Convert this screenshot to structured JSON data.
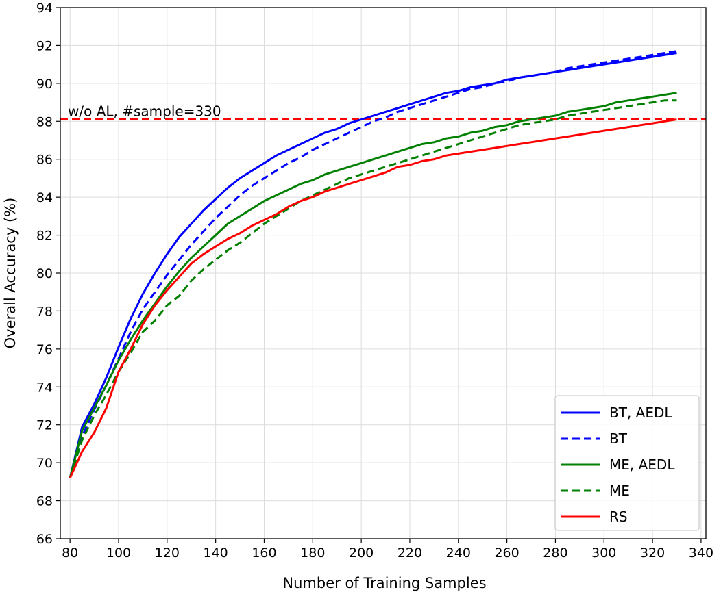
{
  "chart_data": {
    "type": "line",
    "title": "",
    "xlabel": "Number of Training Samples",
    "ylabel": "Overall Accuracy (%)",
    "xlim": [
      76,
      342
    ],
    "ylim": [
      66,
      94
    ],
    "xticks": [
      80,
      100,
      120,
      140,
      160,
      180,
      200,
      220,
      240,
      260,
      280,
      300,
      320,
      340
    ],
    "yticks": [
      66,
      68,
      70,
      72,
      74,
      76,
      78,
      80,
      82,
      84,
      86,
      88,
      90,
      92,
      94
    ],
    "grid": true,
    "legend_position": "lower-right",
    "x": [
      80,
      85,
      90,
      95,
      100,
      105,
      110,
      115,
      120,
      125,
      130,
      135,
      140,
      145,
      150,
      155,
      160,
      165,
      170,
      175,
      180,
      185,
      190,
      195,
      200,
      205,
      210,
      215,
      220,
      225,
      230,
      235,
      240,
      245,
      250,
      255,
      260,
      265,
      270,
      275,
      280,
      285,
      290,
      295,
      300,
      305,
      310,
      315,
      320,
      325,
      330
    ],
    "series": [
      {
        "name": "BT, AEDL",
        "color": "#0000ff",
        "dash": "solid",
        "values": [
          69.2,
          71.9,
          73.1,
          74.5,
          76.1,
          77.6,
          78.9,
          80.0,
          81.0,
          81.9,
          82.6,
          83.3,
          83.9,
          84.5,
          85.0,
          85.4,
          85.8,
          86.2,
          86.5,
          86.8,
          87.1,
          87.4,
          87.6,
          87.9,
          88.1,
          88.3,
          88.5,
          88.7,
          88.9,
          89.1,
          89.3,
          89.5,
          89.6,
          89.8,
          89.9,
          90.0,
          90.2,
          90.3,
          90.4,
          90.5,
          90.6,
          90.7,
          90.8,
          90.9,
          91.0,
          91.1,
          91.2,
          91.3,
          91.4,
          91.5,
          91.6
        ]
      },
      {
        "name": "BT",
        "color": "#0000ff",
        "dash": "dashed",
        "values": [
          69.2,
          71.4,
          72.8,
          74.1,
          75.5,
          76.9,
          78.1,
          79.0,
          79.9,
          80.7,
          81.5,
          82.2,
          82.9,
          83.5,
          84.1,
          84.6,
          85.0,
          85.4,
          85.8,
          86.1,
          86.5,
          86.8,
          87.1,
          87.4,
          87.7,
          88.0,
          88.2,
          88.5,
          88.7,
          88.9,
          89.1,
          89.3,
          89.5,
          89.7,
          89.8,
          90.0,
          90.1,
          90.3,
          90.4,
          90.5,
          90.6,
          90.8,
          90.9,
          91.0,
          91.1,
          91.2,
          91.3,
          91.4,
          91.5,
          91.6,
          91.7
        ]
      },
      {
        "name": "ME, AEDL",
        "color": "#008000",
        "dash": "solid",
        "values": [
          69.2,
          71.7,
          72.9,
          74.1,
          75.4,
          76.5,
          77.5,
          78.4,
          79.3,
          80.1,
          80.8,
          81.4,
          82.0,
          82.6,
          83.0,
          83.4,
          83.8,
          84.1,
          84.4,
          84.7,
          84.9,
          85.2,
          85.4,
          85.6,
          85.8,
          86.0,
          86.2,
          86.4,
          86.6,
          86.8,
          86.9,
          87.1,
          87.2,
          87.4,
          87.5,
          87.7,
          87.8,
          88.0,
          88.1,
          88.2,
          88.3,
          88.5,
          88.6,
          88.7,
          88.8,
          89.0,
          89.1,
          89.2,
          89.3,
          89.4,
          89.5
        ]
      },
      {
        "name": "ME",
        "color": "#008000",
        "dash": "dashed",
        "values": [
          69.2,
          71.2,
          72.5,
          73.6,
          74.8,
          75.8,
          76.9,
          77.5,
          78.3,
          78.8,
          79.6,
          80.2,
          80.7,
          81.2,
          81.6,
          82.1,
          82.6,
          83.0,
          83.4,
          83.8,
          84.1,
          84.4,
          84.7,
          85.0,
          85.2,
          85.4,
          85.6,
          85.8,
          86.0,
          86.2,
          86.4,
          86.6,
          86.8,
          87.0,
          87.2,
          87.4,
          87.6,
          87.8,
          87.9,
          88.0,
          88.1,
          88.3,
          88.4,
          88.5,
          88.6,
          88.7,
          88.8,
          88.9,
          89.0,
          89.1,
          89.1
        ]
      },
      {
        "name": "RS",
        "color": "#ff0000",
        "dash": "solid",
        "values": [
          69.2,
          70.6,
          71.6,
          72.9,
          74.8,
          76.0,
          77.3,
          78.3,
          79.1,
          79.8,
          80.5,
          81.0,
          81.4,
          81.8,
          82.1,
          82.5,
          82.8,
          83.1,
          83.5,
          83.8,
          84.0,
          84.3,
          84.5,
          84.7,
          84.9,
          85.1,
          85.3,
          85.6,
          85.7,
          85.9,
          86.0,
          86.2,
          86.3,
          86.4,
          86.5,
          86.6,
          86.7,
          86.8,
          86.9,
          87.0,
          87.1,
          87.2,
          87.3,
          87.4,
          87.5,
          87.6,
          87.7,
          87.8,
          87.9,
          88.0,
          88.1
        ]
      }
    ],
    "reference_line": {
      "y": 88.1,
      "color": "#ff0000",
      "dash": "dashed",
      "label": "w/o AL, #sample=330"
    }
  }
}
